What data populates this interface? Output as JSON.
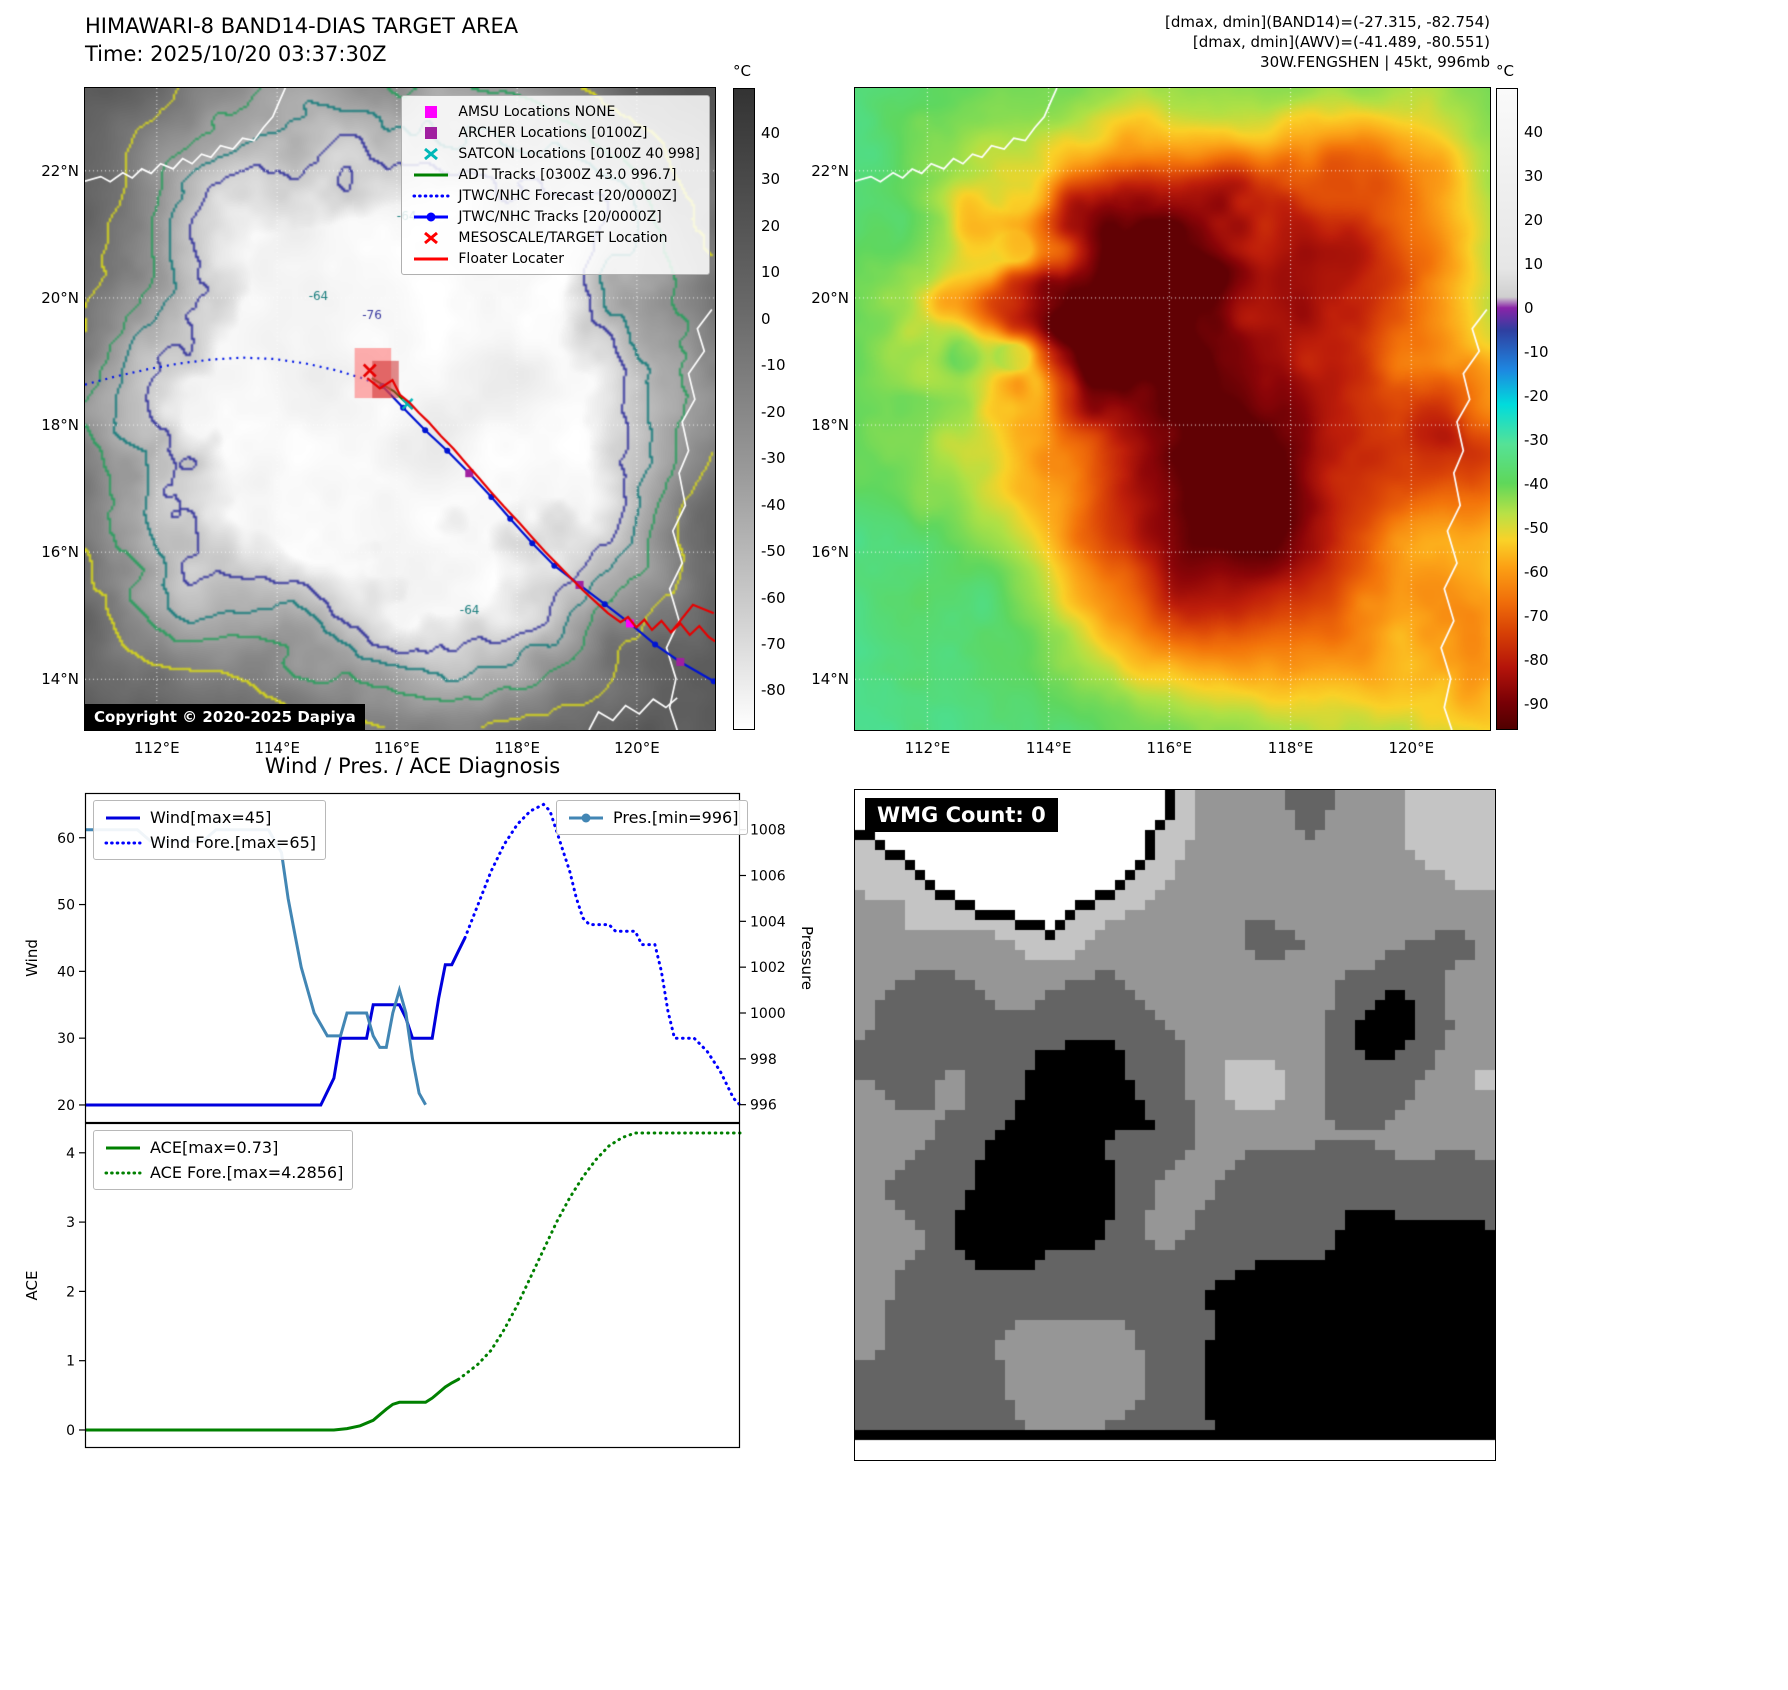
{
  "header": {
    "title": "HIMAWARI-8 BAND14-DIAS TARGET AREA",
    "time": "Time: 2025/10/20 03:37:30Z"
  },
  "info": {
    "lines": [
      "[dmax, dmin](BAND14)=(-27.315, -82.754)",
      "[dmax, dmin](AWV)=(-41.489, -80.551)",
      "30W.FENGSHEN | 45kt, 996mb"
    ]
  },
  "band14_panel": {
    "legend": [
      {
        "label": "AMSU Locations NONE",
        "marker": "square",
        "color": "#ff00ff"
      },
      {
        "label": "ARCHER Locations [0100Z]",
        "marker": "square",
        "color": "#a020a0"
      },
      {
        "label": "SATCON Locations [0100Z 40 998]",
        "marker": "x",
        "color": "#00b8b8"
      },
      {
        "label": "ADT Tracks [0300Z 43.0 996.7]",
        "marker": "line",
        "color": "#008000"
      },
      {
        "label": "JTWC/NHC Forecast [20/0000Z]",
        "marker": "dotted",
        "color": "#0000ff"
      },
      {
        "label": "JTWC/NHC Tracks [20/0000Z]",
        "marker": "line-dot",
        "color": "#0000ff"
      },
      {
        "label": "MESOSCALE/TARGET Location",
        "marker": "x",
        "color": "#ff0000"
      },
      {
        "label": "Floater Locater",
        "marker": "line",
        "color": "#ff0000"
      }
    ],
    "copyright": "Copyright © 2020-2025 Dapiya",
    "x_ticks": [
      "112°E",
      "114°E",
      "116°E",
      "118°E",
      "120°E"
    ],
    "y_ticks": [
      "22°N",
      "20°N",
      "18°N",
      "16°N",
      "14°N"
    ],
    "colorbar": {
      "unit": "°C",
      "ticks": [
        40,
        30,
        20,
        10,
        0,
        -10,
        -20,
        -30,
        -40,
        -50,
        -60,
        -70,
        -80
      ]
    },
    "contour_labels": [
      {
        "text": "-64",
        "color": "#1f8080"
      },
      {
        "text": "-64",
        "color": "#1f8080"
      },
      {
        "text": "-64",
        "color": "#1f8080"
      },
      {
        "text": "-76",
        "color": "#3a3aa0"
      }
    ]
  },
  "awv_panel": {
    "x_ticks": [
      "112°E",
      "114°E",
      "116°E",
      "118°E",
      "120°E"
    ],
    "y_ticks": [
      "22°N",
      "20°N",
      "18°N",
      "16°N",
      "14°N"
    ],
    "colorbar": {
      "unit": "°C",
      "ticks": [
        40,
        30,
        20,
        10,
        0,
        -10,
        -20,
        -30,
        -40,
        -50,
        -60,
        -70,
        -80,
        -90
      ]
    }
  },
  "diagnosis": {
    "title": "Wind / Pres. / ACE Diagnosis"
  },
  "chart_data": [
    {
      "type": "line",
      "name": "wind-pressure",
      "xlim": [
        0,
        100
      ],
      "ylabel_left": "Wind",
      "ylim_left": [
        17.3,
        66.7
      ],
      "yticks_left": [
        20,
        30,
        40,
        50,
        60
      ],
      "ylabel_right": "Pressure",
      "ylim_right": [
        995.2,
        1009.6
      ],
      "yticks_right": [
        996,
        998,
        1000,
        1002,
        1004,
        1006,
        1008
      ],
      "series": [
        {
          "name": "Wind[max=45]",
          "color": "#0000dd",
          "style": "solid",
          "axis": "left",
          "legend": "left",
          "legend_marker": "line",
          "points": [
            [
              0,
              20
            ],
            [
              36,
              20
            ],
            [
              38,
              24
            ],
            [
              39,
              30
            ],
            [
              43,
              30
            ],
            [
              44,
              35
            ],
            [
              48,
              35
            ],
            [
              49,
              33
            ],
            [
              50,
              30
            ],
            [
              53,
              30
            ],
            [
              54,
              36
            ],
            [
              55,
              41
            ],
            [
              56,
              41
            ],
            [
              57,
              43
            ],
            [
              58,
              45
            ]
          ]
        },
        {
          "name": "Wind Fore.[max=65]",
          "color": "#0000ff",
          "style": "dotted",
          "axis": "left",
          "legend": "left",
          "legend_marker": "dotted",
          "points": [
            [
              58,
              45
            ],
            [
              60,
              50
            ],
            [
              62,
              55
            ],
            [
              64,
              59
            ],
            [
              66,
              62
            ],
            [
              68,
              64
            ],
            [
              70,
              65
            ],
            [
              71,
              64
            ],
            [
              72,
              61
            ],
            [
              73,
              58
            ],
            [
              74,
              55
            ],
            [
              75,
              51
            ],
            [
              76,
              48
            ],
            [
              77,
              47
            ],
            [
              80,
              47
            ],
            [
              81,
              46
            ],
            [
              84,
              46
            ],
            [
              85,
              44
            ],
            [
              87,
              44
            ],
            [
              88,
              40
            ],
            [
              89,
              34
            ],
            [
              90,
              30
            ],
            [
              93,
              30
            ],
            [
              94,
              29
            ],
            [
              95,
              28
            ],
            [
              97,
              25
            ],
            [
              99,
              21
            ],
            [
              100,
              20
            ]
          ]
        },
        {
          "name": "Pres.[min=996]",
          "color": "#4286b4",
          "style": "solid",
          "axis": "right",
          "legend": "right",
          "legend_marker": "line-dot",
          "points": [
            [
              0,
              1008
            ],
            [
              8,
              1008
            ],
            [
              10,
              1007.5
            ],
            [
              18,
              1007.5
            ],
            [
              20,
              1008
            ],
            [
              28,
              1008
            ],
            [
              30,
              1007
            ],
            [
              31,
              1005
            ],
            [
              32,
              1003.5
            ],
            [
              33,
              1002
            ],
            [
              34,
              1001
            ],
            [
              35,
              1000
            ],
            [
              36,
              999.5
            ],
            [
              37,
              999
            ],
            [
              39,
              999
            ],
            [
              40,
              1000
            ],
            [
              43,
              1000
            ],
            [
              44,
              999
            ],
            [
              45,
              998.5
            ],
            [
              46,
              998.5
            ],
            [
              47,
              1000
            ],
            [
              48,
              1001
            ],
            [
              49,
              1000
            ],
            [
              50,
              998
            ],
            [
              51,
              996.5
            ],
            [
              52,
              996
            ]
          ]
        }
      ]
    },
    {
      "type": "line",
      "name": "ace",
      "xlim": [
        0,
        100
      ],
      "ylabel_left": "ACE",
      "ylim_left": [
        -0.26,
        4.43
      ],
      "yticks_left": [
        0,
        1,
        2,
        3,
        4
      ],
      "series": [
        {
          "name": "ACE[max=0.73]",
          "color": "#008000",
          "style": "solid",
          "axis": "left",
          "legend": "left",
          "legend_marker": "line",
          "points": [
            [
              0,
              0
            ],
            [
              38,
              0
            ],
            [
              40,
              0.02
            ],
            [
              42,
              0.06
            ],
            [
              44,
              0.14
            ],
            [
              45,
              0.22
            ],
            [
              46,
              0.3
            ],
            [
              47,
              0.37
            ],
            [
              48,
              0.4
            ],
            [
              52,
              0.4
            ],
            [
              53,
              0.46
            ],
            [
              54,
              0.54
            ],
            [
              55,
              0.62
            ],
            [
              56,
              0.68
            ],
            [
              57,
              0.73
            ]
          ]
        },
        {
          "name": "ACE Fore.[max=4.2856]",
          "color": "#008000",
          "style": "dotted",
          "axis": "left",
          "legend": "left",
          "legend_marker": "dotted",
          "points": [
            [
              57,
              0.73
            ],
            [
              58,
              0.8
            ],
            [
              60,
              0.95
            ],
            [
              62,
              1.15
            ],
            [
              64,
              1.45
            ],
            [
              66,
              1.8
            ],
            [
              68,
              2.2
            ],
            [
              70,
              2.6
            ],
            [
              72,
              3.0
            ],
            [
              74,
              3.35
            ],
            [
              76,
              3.65
            ],
            [
              78,
              3.9
            ],
            [
              80,
              4.1
            ],
            [
              82,
              4.22
            ],
            [
              84,
              4.2856
            ],
            [
              100,
              4.2856
            ]
          ]
        }
      ]
    }
  ],
  "wmg_panel": {
    "label": "WMG Count: 0"
  }
}
